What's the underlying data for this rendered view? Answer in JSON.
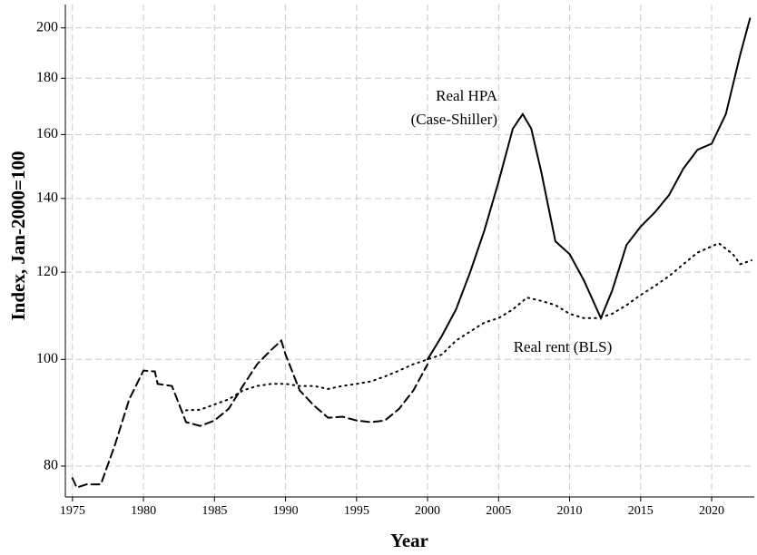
{
  "chart_data": {
    "type": "line",
    "xlabel": "Year",
    "ylabel": "Index, Jan-2000=100",
    "xlim": [
      1974.5,
      2023
    ],
    "ylim": [
      75,
      210
    ],
    "ylog": true,
    "grid": true,
    "xticks": [
      1975,
      1980,
      1985,
      1990,
      1995,
      2000,
      2005,
      2010,
      2015,
      2020
    ],
    "yticks": [
      80,
      100,
      120,
      140,
      160,
      180,
      200
    ],
    "series": [
      {
        "color": "#000000",
        "style": "dashed",
        "x": [
          1975,
          1975.3,
          1976,
          1977,
          1978,
          1979,
          1980,
          1980.8,
          1981,
          1982,
          1983,
          1984,
          1985,
          1986,
          1987,
          1988,
          1989,
          1989.7,
          1990,
          1991,
          1992,
          1993,
          1994,
          1995,
          1996,
          1997,
          1998,
          1999,
          2000
        ],
        "values": [
          78,
          76.5,
          77,
          77,
          83.7,
          92,
          97.7,
          97.5,
          95,
          94.6,
          87.7,
          87,
          88,
          90.2,
          94.6,
          99,
          102,
          104,
          101,
          93.7,
          90.8,
          88.5,
          88.7,
          88,
          87.7,
          88,
          90.2,
          93.7,
          99
        ]
      },
      {
        "color": "#000000",
        "style": "solid",
        "x": [
          2000,
          2001,
          2002,
          2003,
          2004,
          2005,
          2006,
          2006.7,
          2007.3,
          2008,
          2009,
          2010,
          2011,
          2012.2,
          2013,
          2014,
          2015,
          2016,
          2017,
          2018,
          2019,
          2020,
          2021,
          2022,
          2022.7
        ],
        "values": [
          100,
          105,
          111,
          120,
          131,
          145,
          162,
          167,
          162,
          148,
          128,
          124.6,
          118,
          109,
          115.5,
          127,
          132,
          136,
          141,
          149,
          155,
          157,
          167,
          189,
          204
        ]
      },
      {
        "color": "#000000",
        "style": "dotted",
        "x": [
          1983,
          1984,
          1985,
          1986,
          1987,
          1988,
          1989,
          1990,
          1991,
          1992,
          1993,
          1994,
          1995,
          1996,
          1997,
          1998,
          1999,
          2000,
          2001,
          2002,
          2003,
          2004,
          2005,
          2006,
          2007,
          2008,
          2009,
          2010,
          2011,
          2012,
          2013,
          2014,
          2015,
          2016,
          2017,
          2018,
          2019,
          2020.5,
          2021.5,
          2022,
          2022.8
        ],
        "values": [
          89.9,
          90,
          91,
          92,
          93.7,
          94.6,
          95,
          95,
          94.6,
          94.6,
          94,
          94.6,
          95,
          95.5,
          96.5,
          97.7,
          99,
          100,
          101,
          104,
          106,
          108,
          109,
          111,
          113.8,
          113,
          112,
          110,
          109,
          109,
          110,
          112,
          114.4,
          116.6,
          119,
          122,
          125,
          127.5,
          124.6,
          122,
          123
        ]
      }
    ],
    "annotations": [
      "Real HPA",
      "(Case-Shiller)",
      "Real rent (BLS)"
    ]
  }
}
